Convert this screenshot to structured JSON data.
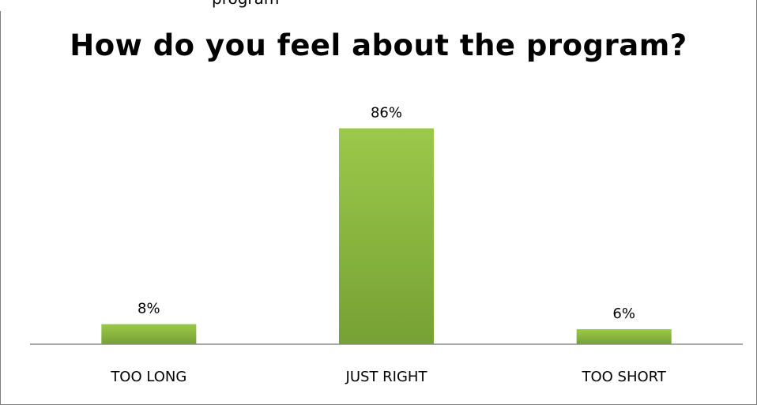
{
  "header": {
    "cutoff_text": "program"
  },
  "colors": {
    "bar_top": "#9bc94a",
    "bar_bottom": "#76a134",
    "axis": "#8c8c8c",
    "frame": "#7f7f7f"
  },
  "chart_data": {
    "type": "bar",
    "title": "How do you feel about the program?",
    "xlabel": "",
    "ylabel": "",
    "categories": [
      "TOO LONG",
      "JUST RIGHT",
      "TOO SHORT"
    ],
    "values": [
      8,
      86,
      6
    ],
    "data_labels": [
      "8%",
      "86%",
      "6%"
    ],
    "ylim": [
      0,
      100
    ],
    "grid": false,
    "legend": "none"
  }
}
